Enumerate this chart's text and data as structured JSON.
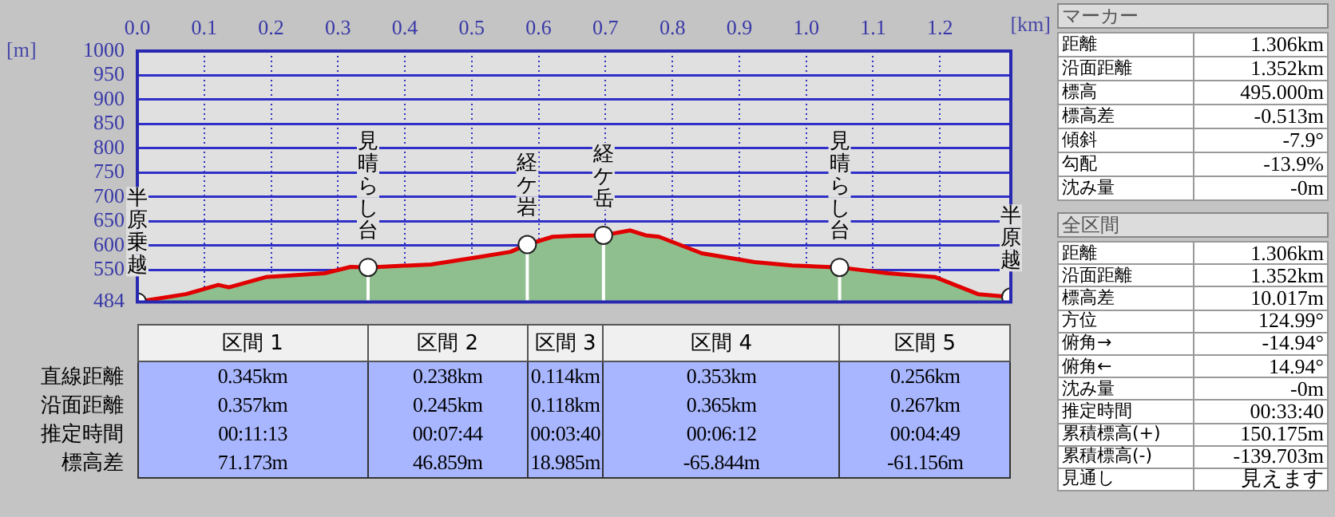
{
  "chart_data": [
    {
      "type": "area",
      "xlabel": "[km]",
      "ylabel": "[m]",
      "xlim": [
        0,
        1.306
      ],
      "ylim": [
        484,
        1000
      ],
      "xticks": [
        {
          "value": 0,
          "label": "0.0"
        },
        0.1,
        0.2,
        0.3,
        0.4,
        0.5,
        0.6,
        0.7,
        0.8,
        0.9,
        {
          "value": 1,
          "label": "1.0"
        },
        1.1,
        1.2
      ],
      "yticks": [
        484,
        550,
        600,
        650,
        700,
        750,
        800,
        850,
        900,
        950,
        1000
      ],
      "grid": true,
      "series": [
        {
          "type": "area",
          "color": "#8fbf8f",
          "x": [
            0,
            0.073,
            0.121,
            0.137,
            0.192,
            0.28,
            0.319,
            0.345,
            0.439,
            0.51,
            0.558,
            0.583,
            0.621,
            0.653,
            0.697,
            0.737,
            0.76,
            0.78,
            0.844,
            0.923,
            0.979,
            1.05,
            1.122,
            1.193,
            1.257,
            1.306
          ],
          "values": [
            484,
            500,
            519,
            514,
            535,
            543,
            556,
            555,
            561,
            576,
            587,
            602,
            618,
            620,
            621,
            631,
            621,
            618,
            584,
            566,
            559,
            555,
            543,
            535,
            500,
            494
          ]
        },
        {
          "type": "scatter",
          "marker": "circle",
          "color": "#ffffff",
          "x": [
            0,
            0.345,
            0.583,
            0.697,
            1.05,
            1.306
          ],
          "values": [
            484,
            555,
            602,
            621,
            555,
            494
          ]
        }
      ],
      "annotations": [
        {
          "text": "半原乗越",
          "x": 0,
          "y": 484
        },
        {
          "text": "見晴らし台",
          "x": 0.345,
          "y": 555
        },
        {
          "text": "経ケ岩",
          "x": 0.583,
          "y": 602
        },
        {
          "text": "経ケ岳",
          "x": 0.697,
          "y": 621
        },
        {
          "text": "見晴らし台",
          "x": 1.05,
          "y": 555
        },
        {
          "text": "半原越",
          "x": 1.306,
          "y": 494
        }
      ]
    },
    {
      "type": "other",
      "categories": [
        "区間 1",
        "区間 2",
        "区間 3",
        "区間 4",
        "区間 5"
      ],
      "y_categories": [
        "直線距離",
        "沿面距離",
        "推定時間",
        "標高差"
      ],
      "cell_labels": [
        [
          "0.345km",
          "0.238km",
          "0.114km",
          "0.353km",
          "0.256km"
        ],
        [
          "0.357km",
          "0.245km",
          "0.118km",
          "0.365km",
          "0.267km"
        ],
        [
          "00:11:13",
          "00:07:44",
          "00:03:40",
          "00:06:12",
          "00:04:49"
        ],
        [
          "71.173m",
          "46.859m",
          "18.985m",
          "-65.844m",
          "-61.156m"
        ]
      ]
    },
    {
      "type": "other",
      "title": "マーカー",
      "y_categories": [
        "距離",
        "沿面距離",
        "標高",
        "標高差",
        "傾斜",
        "勾配",
        "沈み量"
      ],
      "cell_labels": [
        [
          "1.306km"
        ],
        [
          "1.352km"
        ],
        [
          "495.000m"
        ],
        [
          "-0.513m"
        ],
        [
          "-7.9°"
        ],
        [
          "-13.9%"
        ],
        [
          "-0m"
        ]
      ]
    },
    {
      "type": "other",
      "title": "全区間",
      "y_categories": [
        "距離",
        "沿面距離",
        "標高差",
        "方位",
        "俯角→",
        "俯角←",
        "沈み量",
        "推定時間",
        "累積標高(+)",
        "累積標高(-)",
        "見通し"
      ],
      "cell_labels": [
        [
          "1.306km"
        ],
        [
          "1.352km"
        ],
        [
          "10.017m"
        ],
        [
          "124.99°"
        ],
        [
          "-14.94°"
        ],
        [
          "14.94°"
        ],
        [
          "-0m"
        ],
        [
          "00:33:40"
        ],
        [
          "150.175m"
        ],
        [
          "-139.703m"
        ],
        [
          "見えます"
        ]
      ]
    }
  ]
}
